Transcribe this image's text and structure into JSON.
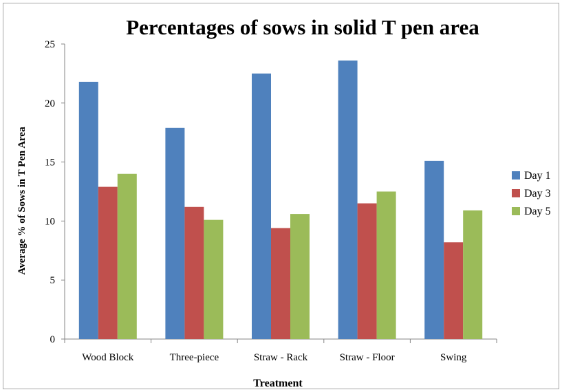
{
  "chart_data": {
    "type": "bar",
    "title": "Percentages of sows in solid T pen area",
    "xlabel": "Treatment",
    "ylabel": "Average % of Sows in T Pen Area",
    "categories": [
      "Wood Block",
      "Three-piece",
      "Straw - Rack",
      "Straw - Floor",
      "Swing"
    ],
    "series": [
      {
        "name": "Day 1",
        "color": "#4f81bd",
        "values": [
          21.8,
          17.9,
          22.5,
          23.6,
          15.1
        ]
      },
      {
        "name": "Day 3",
        "color": "#c0504d",
        "values": [
          12.9,
          11.2,
          9.4,
          11.5,
          8.2
        ]
      },
      {
        "name": "Day 5",
        "color": "#9bbb59",
        "values": [
          14.0,
          10.1,
          10.6,
          12.5,
          10.9
        ]
      }
    ],
    "ylim": [
      0,
      25
    ],
    "yticks": [
      0,
      5,
      10,
      15,
      20,
      25
    ],
    "grid": false,
    "legend_position": "right"
  }
}
